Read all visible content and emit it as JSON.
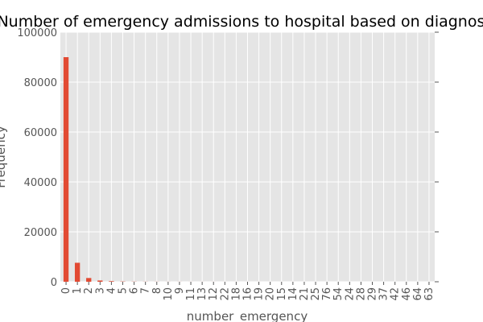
{
  "chart_data": {
    "type": "bar",
    "title": "Number of emergency admissions to hospital based on diagnosis",
    "xlabel": "number_emergency",
    "ylabel": "Frequency",
    "ylim": [
      0,
      100000
    ],
    "yticks": [
      0,
      20000,
      40000,
      60000,
      80000,
      100000
    ],
    "categories": [
      "0",
      "1",
      "2",
      "3",
      "4",
      "5",
      "6",
      "7",
      "8",
      "10",
      "9",
      "11",
      "13",
      "12",
      "22",
      "18",
      "16",
      "19",
      "20",
      "15",
      "14",
      "21",
      "25",
      "76",
      "54",
      "24",
      "28",
      "29",
      "37",
      "42",
      "46",
      "64",
      "63"
    ],
    "values": [
      90000,
      7600,
      1500,
      500,
      230,
      100,
      60,
      40,
      30,
      20,
      20,
      10,
      10,
      10,
      5,
      5,
      5,
      4,
      4,
      3,
      3,
      2,
      2,
      1,
      1,
      1,
      1,
      1,
      1,
      1,
      1,
      1,
      1
    ],
    "grid": true,
    "colors": {
      "bar": "#e24a33",
      "plot_bg": "#e5e5e5",
      "grid": "#ffffff"
    }
  }
}
